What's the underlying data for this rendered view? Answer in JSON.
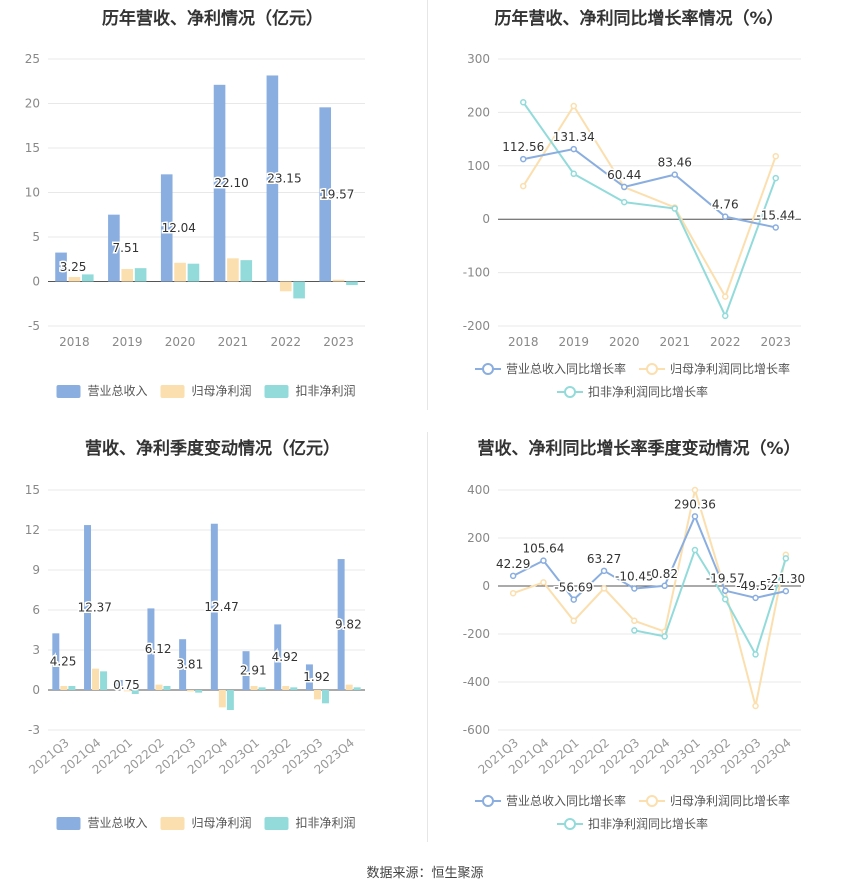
{
  "chart_data": [
    {
      "type": "bar",
      "title": "历年营收、净利情况（亿元）",
      "categories": [
        "2018",
        "2019",
        "2020",
        "2021",
        "2022",
        "2023"
      ],
      "ylim": [
        -5,
        25
      ],
      "yticks": [
        -5,
        0,
        5,
        10,
        15,
        20,
        25
      ],
      "series": [
        {
          "name": "营业总收入",
          "values": [
            3.25,
            7.51,
            12.04,
            22.1,
            23.15,
            19.57
          ],
          "color": "#8aaee0"
        },
        {
          "name": "归母净利润",
          "values": [
            0.5,
            1.4,
            2.1,
            2.6,
            -1.1,
            0.2
          ],
          "color": "#fbdfae"
        },
        {
          "name": "扣非净利润",
          "values": [
            0.8,
            1.5,
            2.0,
            2.4,
            -1.9,
            -0.4
          ],
          "color": "#93dbdb"
        }
      ],
      "data_labels": [
        "3.25",
        "7.51",
        "12.04",
        "22.10",
        "23.15",
        "19.57"
      ],
      "grid": true,
      "legend": "bottom"
    },
    {
      "type": "line",
      "title": "历年营收、净利同比增长率情况（%）",
      "categories": [
        "2018",
        "2019",
        "2020",
        "2021",
        "2022",
        "2023"
      ],
      "ylim": [
        -200,
        300
      ],
      "yticks": [
        -200,
        -100,
        0,
        100,
        200,
        300
      ],
      "series": [
        {
          "name": "营业总收入同比增长率",
          "values": [
            112.56,
            131.34,
            60.44,
            83.46,
            4.76,
            -15.44
          ],
          "color": "#8aaee0",
          "labels": [
            "112.56",
            "131.34",
            "60.44",
            "83.46",
            "4.76",
            "-15.44"
          ]
        },
        {
          "name": "归母净利润同比增长率",
          "values": [
            62,
            212,
            60,
            22,
            -145,
            118
          ],
          "color": "#fbdfae"
        },
        {
          "name": "扣非净利润同比增长率",
          "values": [
            219,
            85,
            32,
            20,
            -181,
            77
          ],
          "color": "#93dbdb"
        }
      ],
      "grid": true,
      "legend": "bottom"
    },
    {
      "type": "bar",
      "title": "营收、净利季度变动情况（亿元）",
      "categories": [
        "2021Q3",
        "2021Q4",
        "2022Q1",
        "2022Q2",
        "2022Q3",
        "2022Q4",
        "2023Q1",
        "2023Q2",
        "2023Q3",
        "2023Q4"
      ],
      "ylim": [
        -3,
        15
      ],
      "yticks": [
        -3,
        0,
        3,
        6,
        9,
        12,
        15
      ],
      "series": [
        {
          "name": "营业总收入",
          "values": [
            4.25,
            12.37,
            0.75,
            6.12,
            3.81,
            12.47,
            2.91,
            4.92,
            1.92,
            9.82
          ],
          "color": "#8aaee0"
        },
        {
          "name": "归母净利润",
          "values": [
            0.3,
            1.6,
            -0.1,
            0.4,
            -0.1,
            -1.3,
            0.3,
            0.3,
            -0.7,
            0.4
          ],
          "color": "#fbdfae"
        },
        {
          "name": "扣非净利润",
          "values": [
            0.3,
            1.4,
            -0.3,
            0.3,
            -0.2,
            -1.5,
            0.2,
            0.2,
            -1.0,
            0.2
          ],
          "color": "#93dbdb"
        }
      ],
      "data_labels": [
        "4.25",
        "12.37",
        "0.75",
        "6.12",
        "3.81",
        "12.47",
        "2.91",
        "4.92",
        "1.92",
        "9.82"
      ],
      "grid": true,
      "legend": "bottom"
    },
    {
      "type": "line",
      "title": "营收、净利同比增长率季度变动情况（%）",
      "categories": [
        "2021Q3",
        "2021Q4",
        "2022Q1",
        "2022Q2",
        "2022Q3",
        "2022Q4",
        "2023Q1",
        "2023Q2",
        "2023Q3",
        "2023Q4"
      ],
      "ylim": [
        -600,
        400
      ],
      "yticks": [
        -600,
        -400,
        -200,
        0,
        200,
        400
      ],
      "series": [
        {
          "name": "营业总收入同比增长率",
          "values": [
            42.29,
            105.64,
            -56.69,
            63.27,
            -10.45,
            0.82,
            290.36,
            -19.57,
            -49.52,
            -21.3
          ],
          "color": "#8aaee0",
          "labels": [
            "42.29",
            "105.64",
            "-56.69",
            "63.27",
            "-10.45",
            "0.82",
            "290.36",
            "-19.57",
            "-49.52",
            "-21.30"
          ]
        },
        {
          "name": "归母净利润同比增长率",
          "values": [
            -30,
            15,
            -145,
            -10,
            -145,
            -190,
            400,
            -20,
            -500,
            130
          ],
          "color": "#fbdfae"
        },
        {
          "name": "扣非净利润同比增长率",
          "values": [
            null,
            null,
            null,
            null,
            -185,
            -210,
            150,
            -55,
            -285,
            115
          ],
          "color": "#93dbdb"
        }
      ],
      "grid": true,
      "legend": "bottom"
    }
  ],
  "legend_labels": {
    "bar": [
      "营业总收入",
      "归母净利润",
      "扣非净利润"
    ],
    "line": [
      "营业总收入同比增长率",
      "归母净利润同比增长率",
      "扣非净利润同比增长率"
    ]
  },
  "source_text": "数据来源：恒生聚源"
}
